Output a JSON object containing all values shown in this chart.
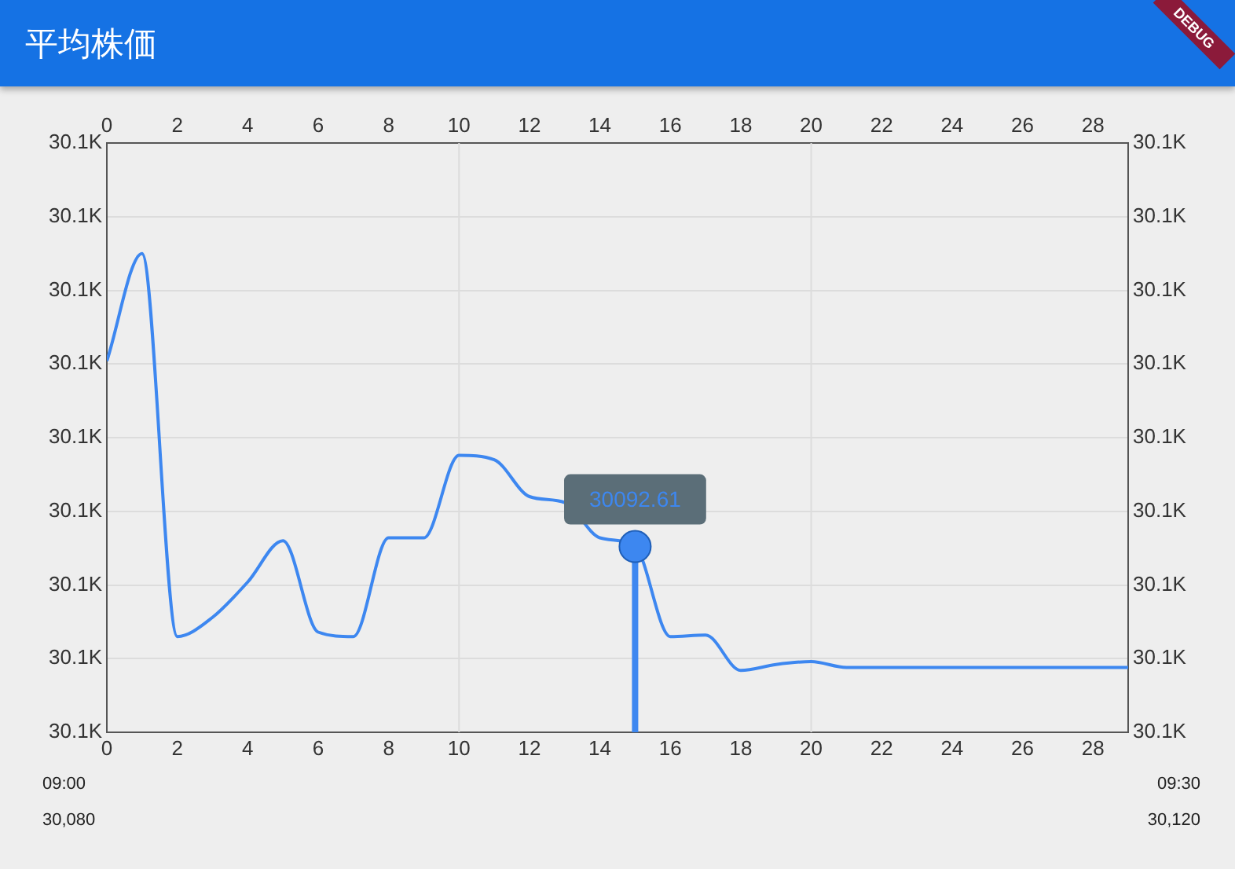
{
  "chart_data": {
    "type": "line",
    "title": "平均株価",
    "x": [
      0,
      1,
      2,
      3,
      4,
      5,
      6,
      7,
      8,
      9,
      10,
      11,
      12,
      13,
      14,
      15,
      16,
      17,
      18,
      19,
      20,
      21,
      22,
      23,
      24,
      25,
      26,
      27,
      28,
      29
    ],
    "series": [
      {
        "color": "#3d87f0",
        "values": [
          30105.2,
          30112.5,
          30086.5,
          30087.8,
          30090.2,
          30093.0,
          30086.8,
          30086.5,
          30093.2,
          30093.2,
          30098.8,
          30098.5,
          30096.0,
          30095.6,
          30093.2,
          30092.61,
          30086.5,
          30086.6,
          30084.2,
          30084.6,
          30084.8,
          30084.4,
          30084.4,
          30084.4,
          30084.4,
          30084.4,
          30084.4,
          30084.4,
          30084.4,
          30084.4
        ]
      }
    ],
    "xlim": [
      0,
      29
    ],
    "xticks": [
      0,
      2,
      4,
      6,
      8,
      10,
      12,
      14,
      16,
      18,
      20,
      22,
      24,
      26,
      28
    ],
    "x2lim": [
      0,
      29
    ],
    "x2ticks": [
      0,
      2,
      4,
      6,
      8,
      10,
      12,
      14,
      16,
      18,
      20,
      22,
      24,
      26,
      28
    ],
    "ylim": [
      30080,
      30120
    ],
    "yticks": [
      {
        "value": 30080,
        "label": "30.1K"
      },
      {
        "value": 30085,
        "label": "30.1K"
      },
      {
        "value": 30090,
        "label": "30.1K"
      },
      {
        "value": 30095,
        "label": "30.1K"
      },
      {
        "value": 30100,
        "label": "30.1K"
      },
      {
        "value": 30105,
        "label": "30.1K"
      },
      {
        "value": 30110,
        "label": "30.1K"
      },
      {
        "value": 30115,
        "label": "30.1K"
      },
      {
        "value": 30120,
        "label": "30.1K"
      }
    ],
    "y2lim": [
      30080,
      30120
    ],
    "y2ticks": [
      {
        "value": 30080,
        "label": "30.1K"
      },
      {
        "value": 30085,
        "label": "30.1K"
      },
      {
        "value": 30090,
        "label": "30.1K"
      },
      {
        "value": 30095,
        "label": "30.1K"
      },
      {
        "value": 30100,
        "label": "30.1K"
      },
      {
        "value": 30105,
        "label": "30.1K"
      },
      {
        "value": 30110,
        "label": "30.1K"
      },
      {
        "value": 30115,
        "label": "30.1K"
      },
      {
        "value": 30120,
        "label": "30.1K"
      }
    ],
    "grid": "y",
    "ref_lines": [
      {
        "axis": "x",
        "value": 10,
        "color": "#dcdcdc"
      },
      {
        "axis": "x",
        "value": 20,
        "color": "#dcdcdc"
      },
      {
        "axis": "x",
        "value": 15,
        "color": "#3d87f0"
      }
    ],
    "marker": "none",
    "line_style": "solid",
    "legend": false,
    "annotations": [
      {
        "text": "30092.61",
        "x": 15,
        "y": 30092.61
      },
      "09:00",
      "30,080",
      "09:30",
      "30,120",
      "DEBUG"
    ]
  }
}
